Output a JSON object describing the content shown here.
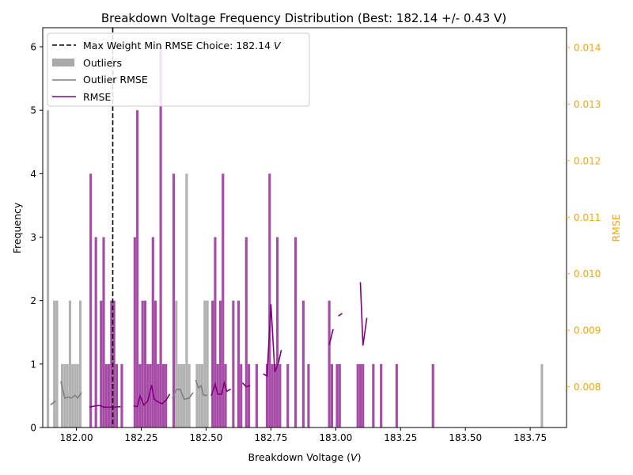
{
  "chart_data": {
    "type": "bar",
    "title": "Breakdown Voltage Frequency Distribution (Best: 182.14 +/- 0.43 V)",
    "xlabel": "Breakdown Voltage (",
    "xlabel_unit": "V",
    "xlabel_close": ")",
    "ylabel": "Frequency",
    "y2label": "RMSE",
    "xlim": [
      181.87,
      183.89
    ],
    "ylim": [
      0,
      6.3
    ],
    "y2lim": [
      0.00728,
      0.01435
    ],
    "x_ticks": [
      182.0,
      182.25,
      182.5,
      182.75,
      183.0,
      183.25,
      183.5,
      183.75
    ],
    "x_tick_labels": [
      "182.00",
      "182.25",
      "182.50",
      "182.75",
      "183.00",
      "183.25",
      "183.50",
      "183.75"
    ],
    "y_ticks": [
      0,
      1,
      2,
      3,
      4,
      5,
      6
    ],
    "y_tick_labels": [
      "0",
      "1",
      "2",
      "3",
      "4",
      "5",
      "6"
    ],
    "y2_ticks": [
      0.008,
      0.009,
      0.01,
      0.011,
      0.012,
      0.013,
      0.014
    ],
    "y2_tick_labels": [
      "0.008",
      "0.009",
      "0.010",
      "0.011",
      "0.012",
      "0.013",
      "0.014"
    ],
    "bin_width": 0.0096,
    "colors": {
      "outliers": "#aaaaaa",
      "inliers": "#800080",
      "outlier_rmse": "#808080",
      "rmse": "#800080",
      "choice_line": "#000000",
      "right_axis": "#ffa500"
    },
    "choice": {
      "value": 182.14
    },
    "legend": {
      "position": "top-left",
      "choice_label": "Max Weight Min RMSE Choice: 182.14 ",
      "choice_unit": "V",
      "outliers_label": "Outliers",
      "outlier_rmse_label": "Outlier RMSE",
      "rmse_label": "RMSE"
    },
    "outliers": [
      {
        "x": 181.89,
        "y": 5
      },
      {
        "x": 181.915,
        "y": 2
      },
      {
        "x": 181.925,
        "y": 2
      },
      {
        "x": 181.945,
        "y": 1
      },
      {
        "x": 181.955,
        "y": 1
      },
      {
        "x": 181.965,
        "y": 1
      },
      {
        "x": 181.975,
        "y": 2
      },
      {
        "x": 181.985,
        "y": 1
      },
      {
        "x": 181.995,
        "y": 1
      },
      {
        "x": 182.005,
        "y": 1
      },
      {
        "x": 182.015,
        "y": 2
      },
      {
        "x": 182.385,
        "y": 2
      },
      {
        "x": 182.395,
        "y": 1
      },
      {
        "x": 182.405,
        "y": 1
      },
      {
        "x": 182.415,
        "y": 1
      },
      {
        "x": 182.425,
        "y": 4
      },
      {
        "x": 182.435,
        "y": 1
      },
      {
        "x": 182.465,
        "y": 1
      },
      {
        "x": 182.475,
        "y": 1
      },
      {
        "x": 182.485,
        "y": 1
      },
      {
        "x": 182.495,
        "y": 2
      },
      {
        "x": 182.505,
        "y": 2
      },
      {
        "x": 183.795,
        "y": 1
      }
    ],
    "inliers": [
      {
        "x": 182.075,
        "y": 3
      },
      {
        "x": 182.055,
        "y": 4
      },
      {
        "x": 182.095,
        "y": 2
      },
      {
        "x": 182.105,
        "y": 3
      },
      {
        "x": 182.115,
        "y": 1
      },
      {
        "x": 182.125,
        "y": 1
      },
      {
        "x": 182.135,
        "y": 2
      },
      {
        "x": 182.145,
        "y": 2
      },
      {
        "x": 182.155,
        "y": 1
      },
      {
        "x": 182.175,
        "y": 1
      },
      {
        "x": 182.225,
        "y": 3
      },
      {
        "x": 182.235,
        "y": 5
      },
      {
        "x": 182.245,
        "y": 1
      },
      {
        "x": 182.255,
        "y": 2
      },
      {
        "x": 182.265,
        "y": 2
      },
      {
        "x": 182.275,
        "y": 1
      },
      {
        "x": 182.285,
        "y": 1
      },
      {
        "x": 182.295,
        "y": 3
      },
      {
        "x": 182.305,
        "y": 2
      },
      {
        "x": 182.315,
        "y": 1
      },
      {
        "x": 182.325,
        "y": 6
      },
      {
        "x": 182.335,
        "y": 1
      },
      {
        "x": 182.345,
        "y": 1
      },
      {
        "x": 182.375,
        "y": 4
      },
      {
        "x": 182.525,
        "y": 2
      },
      {
        "x": 182.535,
        "y": 3
      },
      {
        "x": 182.545,
        "y": 1
      },
      {
        "x": 182.555,
        "y": 2
      },
      {
        "x": 182.565,
        "y": 4
      },
      {
        "x": 182.575,
        "y": 1
      },
      {
        "x": 182.605,
        "y": 2
      },
      {
        "x": 182.625,
        "y": 2
      },
      {
        "x": 182.635,
        "y": 1
      },
      {
        "x": 182.655,
        "y": 3
      },
      {
        "x": 182.665,
        "y": 1
      },
      {
        "x": 182.695,
        "y": 1
      },
      {
        "x": 182.735,
        "y": 1
      },
      {
        "x": 182.745,
        "y": 4
      },
      {
        "x": 182.755,
        "y": 1
      },
      {
        "x": 182.765,
        "y": 1
      },
      {
        "x": 182.775,
        "y": 3
      },
      {
        "x": 182.785,
        "y": 1
      },
      {
        "x": 182.815,
        "y": 1
      },
      {
        "x": 182.845,
        "y": 3
      },
      {
        "x": 182.875,
        "y": 2
      },
      {
        "x": 182.895,
        "y": 1
      },
      {
        "x": 182.975,
        "y": 2
      },
      {
        "x": 182.985,
        "y": 1
      },
      {
        "x": 183.005,
        "y": 1
      },
      {
        "x": 183.015,
        "y": 1
      },
      {
        "x": 183.085,
        "y": 1
      },
      {
        "x": 183.095,
        "y": 1
      },
      {
        "x": 183.105,
        "y": 1
      },
      {
        "x": 183.145,
        "y": 1
      },
      {
        "x": 183.175,
        "y": 1
      },
      {
        "x": 183.235,
        "y": 1
      },
      {
        "x": 183.375,
        "y": 1
      }
    ],
    "outlier_rmse": [
      [
        {
          "x": 181.9,
          "y": 0.00768
        },
        {
          "x": 181.92,
          "y": 0.00775
        }
      ],
      [
        {
          "x": 181.94,
          "y": 0.0081
        },
        {
          "x": 181.955,
          "y": 0.0078
        },
        {
          "x": 181.97,
          "y": 0.00782
        },
        {
          "x": 181.98,
          "y": 0.0078
        },
        {
          "x": 181.995,
          "y": 0.00785
        },
        {
          "x": 182.005,
          "y": 0.0078
        },
        {
          "x": 182.02,
          "y": 0.0079
        }
      ],
      [
        {
          "x": 182.37,
          "y": 0.0078
        },
        {
          "x": 182.385,
          "y": 0.00795
        },
        {
          "x": 182.4,
          "y": 0.00796
        },
        {
          "x": 182.415,
          "y": 0.00778
        },
        {
          "x": 182.435,
          "y": 0.0078
        },
        {
          "x": 182.45,
          "y": 0.0079
        }
      ],
      [
        {
          "x": 182.46,
          "y": 0.00812
        },
        {
          "x": 182.47,
          "y": 0.00798
        },
        {
          "x": 182.48,
          "y": 0.00802
        },
        {
          "x": 182.49,
          "y": 0.00785
        },
        {
          "x": 182.505,
          "y": 0.00785
        }
      ]
    ],
    "rmse": [
      [
        {
          "x": 182.05,
          "y": 0.00764
        },
        {
          "x": 182.07,
          "y": 0.00766
        },
        {
          "x": 182.09,
          "y": 0.00767
        },
        {
          "x": 182.105,
          "y": 0.00764
        },
        {
          "x": 182.13,
          "y": 0.00764
        },
        {
          "x": 182.15,
          "y": 0.00764
        },
        {
          "x": 182.17,
          "y": 0.00765
        }
      ],
      [
        {
          "x": 182.22,
          "y": 0.00766
        },
        {
          "x": 182.235,
          "y": 0.00765
        },
        {
          "x": 182.245,
          "y": 0.00784
        },
        {
          "x": 182.26,
          "y": 0.00768
        },
        {
          "x": 182.275,
          "y": 0.00775
        },
        {
          "x": 182.29,
          "y": 0.00803
        },
        {
          "x": 182.3,
          "y": 0.00778
        },
        {
          "x": 182.315,
          "y": 0.00773
        },
        {
          "x": 182.33,
          "y": 0.0077
        },
        {
          "x": 182.345,
          "y": 0.00776
        },
        {
          "x": 182.36,
          "y": 0.00787
        }
      ],
      [
        {
          "x": 182.52,
          "y": 0.00784
        },
        {
          "x": 182.535,
          "y": 0.00805
        },
        {
          "x": 182.545,
          "y": 0.00787
        },
        {
          "x": 182.56,
          "y": 0.00787
        },
        {
          "x": 182.57,
          "y": 0.00807
        },
        {
          "x": 182.58,
          "y": 0.00792
        },
        {
          "x": 182.595,
          "y": 0.00796
        }
      ],
      [
        {
          "x": 182.64,
          "y": 0.00807
        },
        {
          "x": 182.655,
          "y": 0.008
        },
        {
          "x": 182.67,
          "y": 0.00802
        }
      ],
      [
        {
          "x": 182.72,
          "y": 0.00823
        },
        {
          "x": 182.735,
          "y": 0.00819
        },
        {
          "x": 182.75,
          "y": 0.00946
        },
        {
          "x": 182.765,
          "y": 0.00826
        },
        {
          "x": 182.78,
          "y": 0.00844
        },
        {
          "x": 182.79,
          "y": 0.00865
        }
      ],
      [
        {
          "x": 182.975,
          "y": 0.00874
        },
        {
          "x": 182.99,
          "y": 0.00902
        }
      ],
      [
        {
          "x": 183.01,
          "y": 0.00925
        },
        {
          "x": 183.025,
          "y": 0.0093
        }
      ],
      [
        {
          "x": 183.095,
          "y": 0.00985
        },
        {
          "x": 183.105,
          "y": 0.00873
        },
        {
          "x": 183.12,
          "y": 0.00922
        }
      ]
    ]
  }
}
